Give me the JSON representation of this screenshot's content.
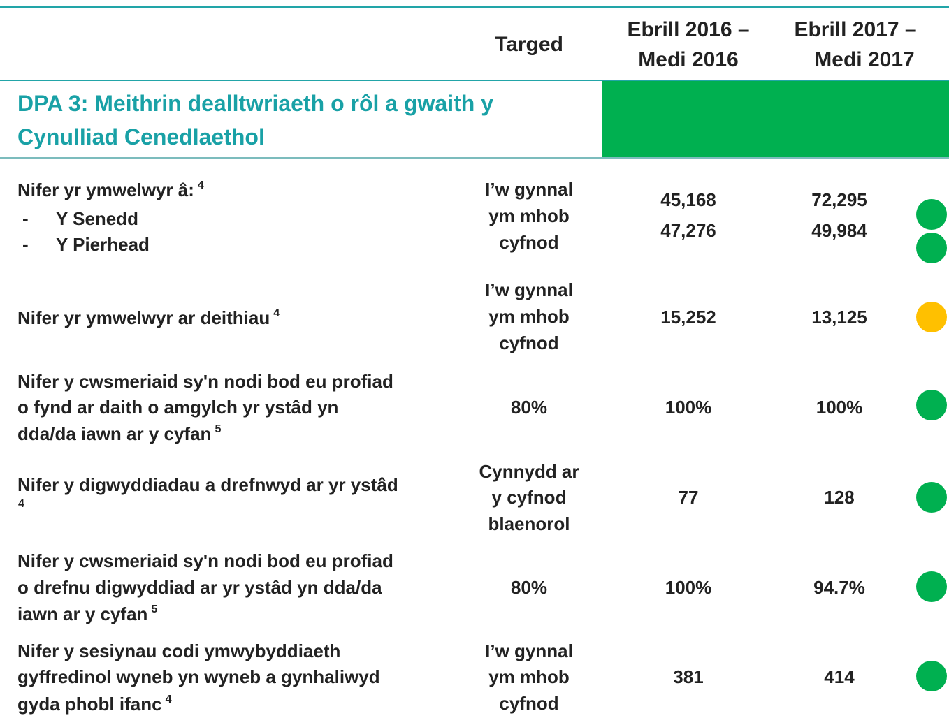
{
  "header": {
    "columns": [
      [
        "Targed"
      ],
      [
        "Ebrill 2016 –",
        "Medi 2016"
      ],
      [
        "Ebrill 2017  –",
        "Medi 2017"
      ]
    ]
  },
  "section": {
    "title": [
      "DPA 3: Meithrin dealltwriaeth o rôl a gwaith y",
      "Cynulliad Cenedlaethol"
    ],
    "color": "#00b050"
  },
  "rows": [
    {
      "label": [
        "Nifer yr ymwelwyr â:"
      ],
      "note": "4",
      "bullet": "-",
      "items": [
        "Y Senedd",
        "Y Pierhead"
      ],
      "target": [
        "I’w gynnal",
        "ym mhob",
        "cyfnod"
      ],
      "values_2016": [
        "45,168",
        "47,276"
      ],
      "values_2017": [
        "72,295",
        "49,984"
      ],
      "status": [
        "#00b050",
        "#00b050"
      ]
    },
    {
      "label": [
        "Nifer yr ymwelwyr ar deithiau"
      ],
      "note": "4",
      "target": [
        "I’w gynnal",
        "ym mhob",
        "cyfnod"
      ],
      "values_2016": [
        "15,252"
      ],
      "values_2017": [
        "13,125"
      ],
      "status": [
        "#ffc000"
      ]
    },
    {
      "label": [
        "Nifer y cwsmeriaid sy'n nodi bod eu profiad",
        "o fynd ar daith o amgylch yr ystâd yn",
        "dda/da iawn ar y cyfan"
      ],
      "note": "5",
      "target": [
        "80%"
      ],
      "values_2016": [
        "100%"
      ],
      "values_2017": [
        "100%"
      ],
      "status": [
        "#00b050"
      ]
    },
    {
      "label": [
        "Nifer y digwyddiadau a drefnwyd ar yr ystâd"
      ],
      "note": "4",
      "target": [
        "Cynnydd ar",
        "y cyfnod",
        "blaenorol"
      ],
      "values_2016": [
        "77"
      ],
      "values_2017": [
        "128"
      ],
      "status": [
        "#00b050"
      ]
    },
    {
      "label": [
        "Nifer y cwsmeriaid sy'n nodi bod eu profiad",
        "o drefnu digwyddiad ar yr ystâd yn dda/da",
        "iawn ar y cyfan"
      ],
      "note": "5",
      "target": [
        "80%"
      ],
      "values_2016": [
        "100%"
      ],
      "values_2017": [
        "94.7%"
      ],
      "status": [
        "#00b050"
      ]
    },
    {
      "label": [
        "Nifer y sesiynau codi ymwybyddiaeth",
        "gyffredinol wyneb yn wyneb a gynhaliwyd",
        "gyda phobl ifanc"
      ],
      "note": "4",
      "target": [
        "I’w gynnal",
        "ym mhob",
        "cyfnod"
      ],
      "values_2016": [
        "381"
      ],
      "values_2017": [
        "414"
      ],
      "status": [
        "#00b050"
      ]
    }
  ]
}
